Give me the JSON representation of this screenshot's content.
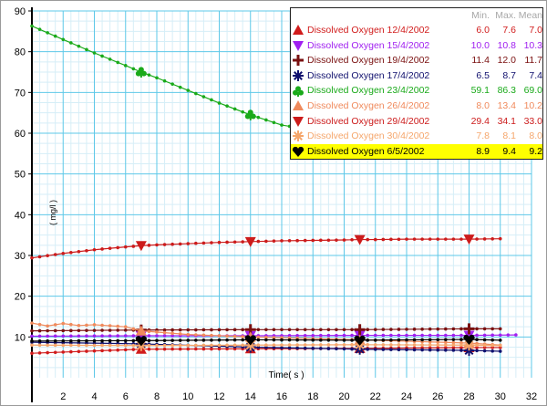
{
  "chart_data": {
    "type": "line",
    "xlabel": "Time( s )",
    "ylabel": "( mg/l )",
    "xlim": [
      0,
      32
    ],
    "ylim": [
      0,
      90
    ],
    "x_ticks": [
      "2",
      "4",
      "6",
      "8",
      "10",
      "12",
      "14",
      "16",
      "18",
      "20",
      "22",
      "24",
      "26",
      "28",
      "30",
      "32"
    ],
    "y_ticks": [
      "10",
      "20",
      "30",
      "40",
      "50",
      "60",
      "70",
      "80",
      "90"
    ],
    "grid": true,
    "legend_placement": "top-right",
    "legend_columns": [
      "Min.",
      "Max.",
      "Mean"
    ],
    "series": [
      {
        "name": "Dissolved Oxygen 12/4/2002",
        "color": "#d11b1b",
        "marker": "triangle-up",
        "stats": [
          "6.0",
          "7.6",
          "7.0"
        ],
        "x": [
          0,
          7,
          14,
          21,
          28,
          30
        ],
        "y": [
          6.0,
          7.0,
          7.1,
          7.2,
          7.4,
          7.4
        ]
      },
      {
        "name": "Dissolved Oxygen 15/4/2002",
        "color": "#a020f0",
        "marker": "triangle-down",
        "stats": [
          "10.0",
          "10.8",
          "10.3"
        ],
        "x": [
          0,
          7,
          14,
          21,
          28,
          31
        ],
        "y": [
          10.2,
          10.3,
          10.3,
          10.4,
          10.4,
          10.5
        ]
      },
      {
        "name": "Dissolved Oxygen 19/4/2002",
        "color": "#7a1010",
        "marker": "plus",
        "stats": [
          "11.4",
          "12.0",
          "11.7"
        ],
        "x": [
          0,
          7,
          14,
          21,
          28,
          30
        ],
        "y": [
          11.5,
          11.7,
          11.8,
          11.8,
          12.0,
          12.0
        ]
      },
      {
        "name": "Dissolved Oxygen 17/4/2002",
        "color": "#10106e",
        "marker": "asterisk",
        "stats": [
          "6.5",
          "8.7",
          "7.4"
        ],
        "x": [
          0,
          7,
          14,
          21,
          28,
          30
        ],
        "y": [
          8.7,
          8.3,
          7.5,
          7.0,
          6.7,
          6.5
        ]
      },
      {
        "name": "Dissolved Oxygen 23/4/2002",
        "color": "#1aaa1a",
        "marker": "club",
        "stats": [
          "59.1",
          "86.3",
          "69.0"
        ],
        "x": [
          0,
          2,
          4,
          6,
          7,
          8,
          10,
          12,
          14,
          16,
          18,
          20,
          22,
          24,
          26,
          28,
          30
        ],
        "y": [
          86.3,
          83.0,
          79.7,
          76.6,
          75.0,
          73.6,
          70.5,
          67.4,
          64.5,
          62.0,
          60.8,
          60.3,
          59.9,
          59.6,
          59.4,
          59.2,
          59.1
        ]
      },
      {
        "name": "Dissolved Oxygen 26/4/2002",
        "color": "#f08a5c",
        "marker": "triangle-up",
        "stats": [
          "8.0",
          "13.4",
          "10.2"
        ],
        "x": [
          0,
          1,
          2,
          3,
          4,
          6,
          7,
          10,
          14,
          21,
          28,
          30
        ],
        "y": [
          13.4,
          12.7,
          13.3,
          12.8,
          13.0,
          12.5,
          11.5,
          10.6,
          10.0,
          9.3,
          8.5,
          8.0
        ]
      },
      {
        "name": "Dissolved Oxygen 29/4/2002",
        "color": "#cc1b1b",
        "marker": "triangle-down",
        "stats": [
          "29.4",
          "34.1",
          "33.0"
        ],
        "x": [
          0,
          2,
          4,
          6,
          7,
          8,
          10,
          12,
          14,
          16,
          18,
          20,
          21,
          22,
          24,
          26,
          28,
          30
        ],
        "y": [
          29.4,
          30.5,
          31.4,
          32.1,
          32.4,
          32.6,
          32.9,
          33.2,
          33.4,
          33.6,
          33.7,
          33.8,
          33.9,
          33.9,
          34.0,
          34.0,
          34.0,
          34.1
        ]
      },
      {
        "name": "Dissolved Oxygen 30/4/2002",
        "color": "#f5a66b",
        "marker": "asterisk",
        "stats": [
          "7.8",
          "8.1",
          "8.0"
        ],
        "x": [
          0,
          7,
          14,
          21,
          28,
          30
        ],
        "y": [
          8.0,
          7.9,
          8.0,
          8.1,
          8.0,
          7.9
        ]
      },
      {
        "name": "Dissolved Oxygen 6/5/2002",
        "color": "#000000",
        "marker": "heart",
        "stats": [
          "8.9",
          "9.4",
          "9.2"
        ],
        "x": [
          0,
          7,
          14,
          21,
          28,
          30
        ],
        "y": [
          9.0,
          9.1,
          9.3,
          9.2,
          9.4,
          9.2
        ]
      }
    ]
  }
}
